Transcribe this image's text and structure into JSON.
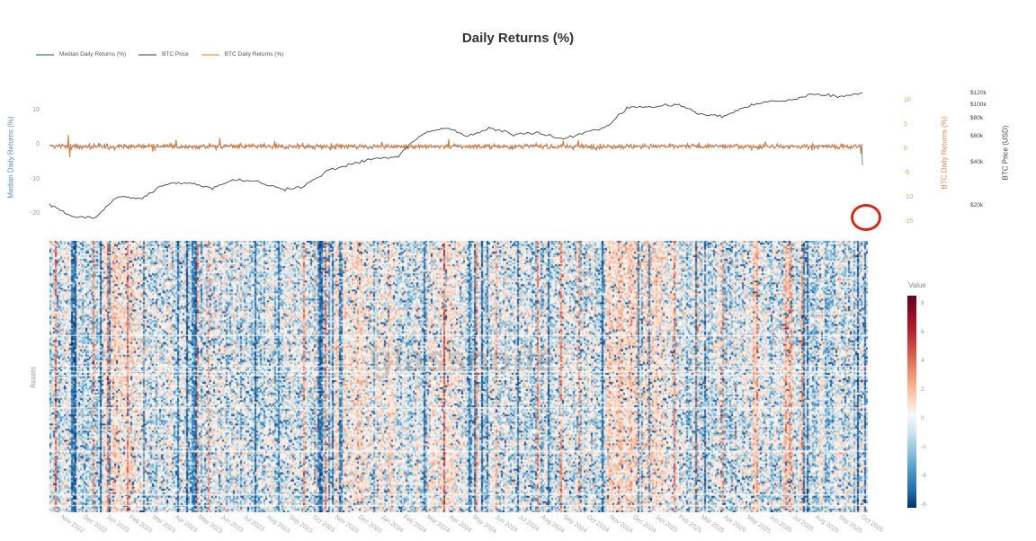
{
  "header": {
    "title": "Daily Returns (%)"
  },
  "legend": [
    {
      "label": "Median Daily Returns (%)",
      "color": "#5b8cc2"
    },
    {
      "label": "BTC Price",
      "color": "#555555"
    },
    {
      "label": "BTC Daily Returns (%)",
      "color": "#e07b39"
    }
  ],
  "axes": {
    "left_label": "Median Daily Returns (%)",
    "left_ticks": [
      "10",
      "0",
      "-10",
      "-20"
    ],
    "right_returns_label": "BTC Daily Returns (%)",
    "right_returns_ticks": [
      "10",
      "5",
      "0",
      "-5",
      "-10",
      "-15"
    ],
    "right_price_label": "BTC Price (USD)",
    "right_price_ticks": [
      "$120k",
      "$100k",
      "$80k",
      "$60k",
      "$40k",
      "$20k"
    ],
    "heatmap_y_label": "Assets",
    "x_ticks": [
      "Nov 2022",
      "Dec 2022",
      "Jan 2023",
      "Feb 2023",
      "Mar 2023",
      "Apr 2023",
      "May 2023",
      "Jun 2023",
      "Jul 2023",
      "Aug 2023",
      "Sep 2023",
      "Oct 2023",
      "Nov 2023",
      "Dec 2023",
      "Jan 2024",
      "Feb 2024",
      "Mar 2024",
      "Apr 2024",
      "May 2024",
      "Jun 2024",
      "Jul 2024",
      "Aug 2024",
      "Sep 2024",
      "Oct 2024",
      "Nov 2024",
      "Dec 2024",
      "Jan 2025",
      "Feb 2025",
      "Mar 2025",
      "Apr 2025",
      "May 2025",
      "Jun 2025",
      "Jul 2025",
      "Aug 2025",
      "Sep 2025",
      "Oct 2025"
    ]
  },
  "colorbar": {
    "title": "Value",
    "ticks": [
      "8",
      "6",
      "4",
      "2",
      "0",
      "-2",
      "-4",
      "-6"
    ]
  },
  "watermark": "glassnode",
  "chart_data": [
    {
      "type": "line",
      "title": "Daily Returns (%)",
      "xlabel": "",
      "ylabel": "Median Daily Returns (%)",
      "ylim": [
        -22,
        16
      ],
      "y2label": "BTC Daily Returns (%)",
      "y2lim": [
        -16,
        11
      ],
      "y3label": "BTC Price (USD)",
      "x": [
        "Nov 2022",
        "Dec 2022",
        "Jan 2023",
        "Feb 2023",
        "Mar 2023",
        "Apr 2023",
        "May 2023",
        "Jun 2023",
        "Jul 2023",
        "Aug 2023",
        "Sep 2023",
        "Oct 2023",
        "Nov 2023",
        "Dec 2023",
        "Jan 2024",
        "Feb 2024",
        "Mar 2024",
        "Apr 2024",
        "May 2024",
        "Jun 2024",
        "Jul 2024",
        "Aug 2024",
        "Sep 2024",
        "Oct 2024",
        "Nov 2024",
        "Dec 2024",
        "Jan 2025",
        "Feb 2025",
        "Mar 2025",
        "Apr 2025",
        "May 2025",
        "Jun 2025",
        "Jul 2025",
        "Aug 2025",
        "Sep 2025",
        "Oct 2025"
      ],
      "series": [
        {
          "name": "BTC Price",
          "axis": "price",
          "values": [
            20500,
            16800,
            16600,
            23500,
            22500,
            28500,
            29000,
            26500,
            30500,
            29200,
            26000,
            27500,
            35000,
            38500,
            42500,
            43000,
            62000,
            69000,
            60000,
            68000,
            62000,
            64000,
            58000,
            63000,
            70000,
            96000,
            95000,
            100000,
            85000,
            82000,
            96000,
            104000,
            107000,
            118000,
            112000,
            120000
          ]
        },
        {
          "name": "BTC Daily Returns (%)",
          "axis": "returns",
          "note": "oscillates roughly ±5% with spikes to +10 and -8; final Oct 2025 drop ~ -7%"
        },
        {
          "name": "Median Daily Returns (%)",
          "axis": "median",
          "note": "tracks BTC returns; final Oct 2025 plunge to ~ -14% (circled)"
        }
      ],
      "annotations": [
        "Red circle highlighting final-day crash in median returns (Oct 2025)"
      ],
      "legend_position": "top-left"
    },
    {
      "type": "heatmap",
      "xlabel": "",
      "ylabel": "Assets",
      "colorscale": "RdBu (red positive, blue negative)",
      "zlim": [
        -7,
        9
      ],
      "colorbar_title": "Value",
      "colorbar_ticks": [
        8,
        6,
        4,
        2,
        0,
        -2,
        -4,
        -6
      ],
      "x": [
        "Nov 2022",
        "Oct 2025"
      ],
      "note": "Per-asset daily returns; visible red-dominant bands around Mar 2023, Nov-Dec 2023, Mar 2024, Nov-Dec 2024; blue bands around Aug 2024, Mar-Apr 2025"
    }
  ]
}
